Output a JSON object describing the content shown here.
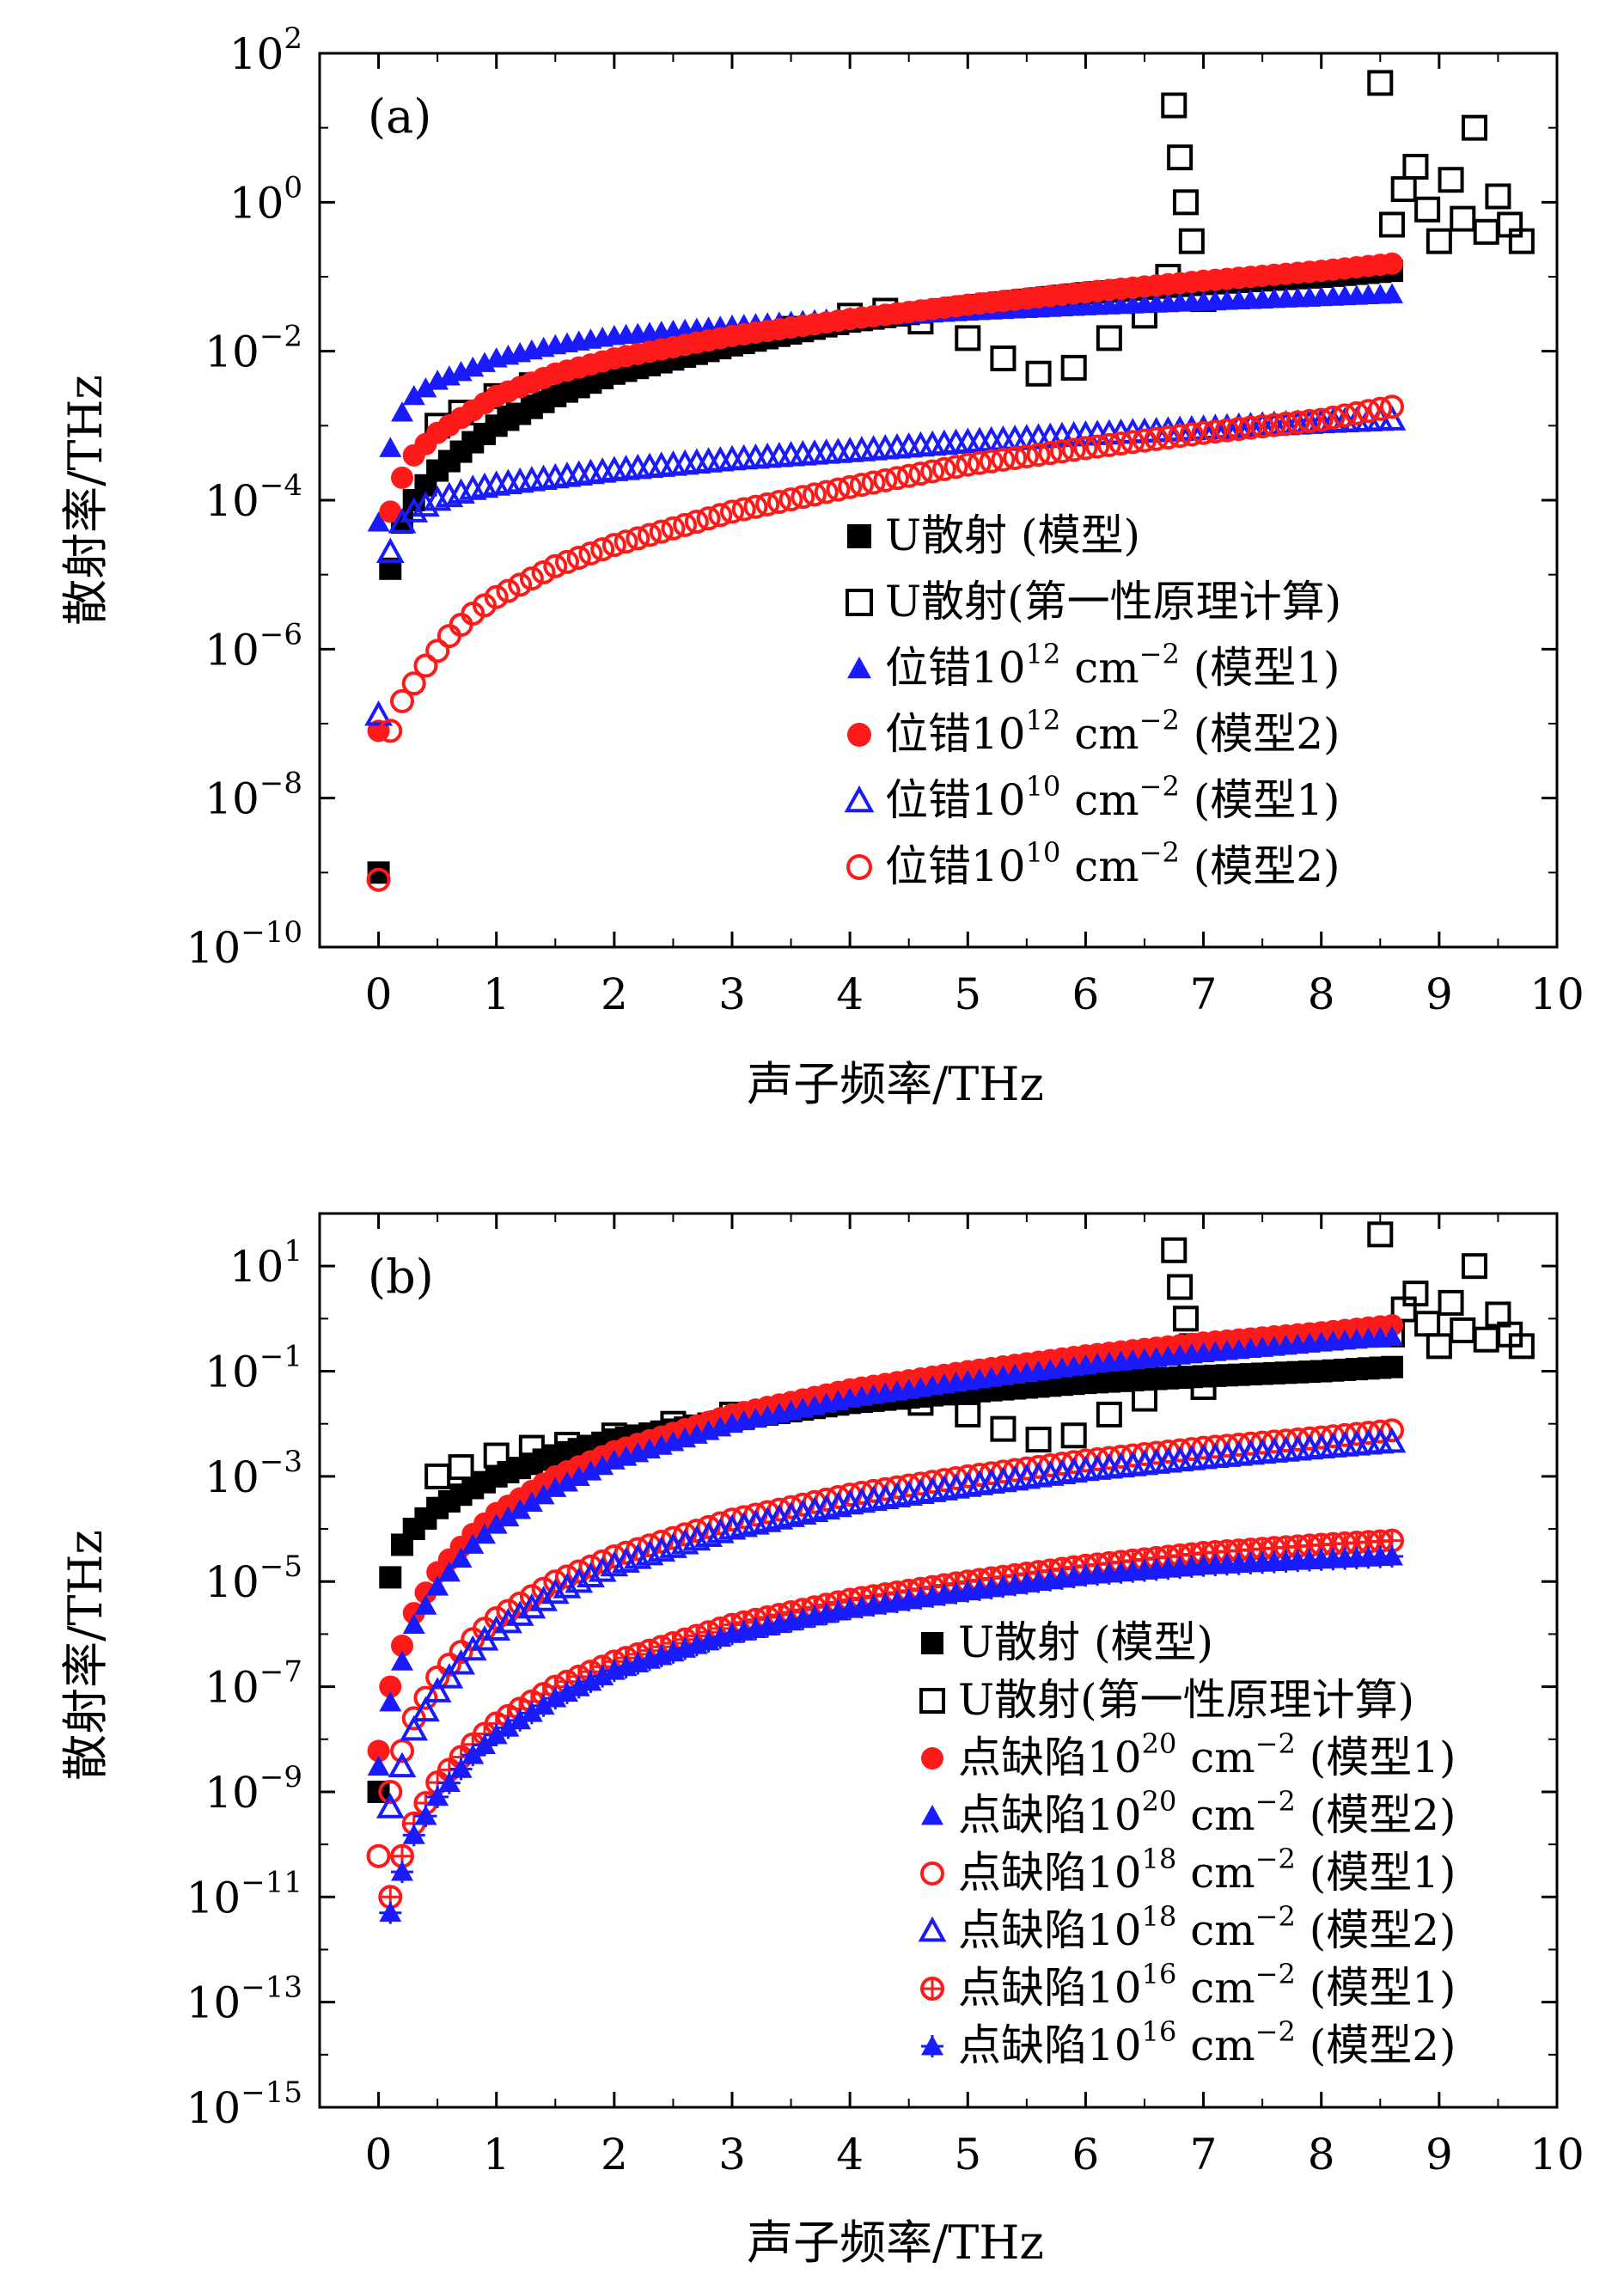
{
  "colors": {
    "black": "#000000",
    "blue": "#1a1aff",
    "red": "#ff1a1a"
  },
  "chart_data": [
    {
      "type": "scatter",
      "panel_label": "(a)",
      "xlabel": "声子频率/THz",
      "ylabel": "散射率/THz",
      "xlim": [
        -0.5,
        10
      ],
      "xticks": [
        "0",
        "1",
        "2",
        "3",
        "4",
        "5",
        "6",
        "7",
        "8",
        "9",
        "10"
      ],
      "y_log": true,
      "ylim_exp": [
        -10,
        2
      ],
      "yticks": [
        {
          "base": "10",
          "exp": "2"
        },
        {
          "base": "10",
          "exp": "0"
        },
        {
          "base": "10",
          "exp": "−2"
        },
        {
          "base": "10",
          "exp": "−4"
        },
        {
          "base": "10",
          "exp": "−6"
        },
        {
          "base": "10",
          "exp": "−8"
        },
        {
          "base": "10",
          "exp": "−10"
        }
      ],
      "ytick_exp": [
        2,
        0,
        -2,
        -4,
        -6,
        -8,
        -10
      ],
      "legend_position": "center-right",
      "series": [
        {
          "name": "U散射 (模型)",
          "label_main": "U散射 (模型)",
          "label_sup": "",
          "label_tail": "",
          "marker": "filled-square",
          "color": "#000000",
          "x": [
            0.0,
            0.1,
            0.2,
            0.3,
            0.5,
            0.8,
            1.0,
            1.5,
            2.0,
            3.0,
            4.0,
            5.0,
            6.0,
            7.0,
            8.0,
            8.6
          ],
          "y": [
            1e-09,
            1.2e-05,
            5e-05,
            0.0001,
            0.00025,
            0.0006,
            0.001,
            0.0025,
            0.005,
            0.012,
            0.025,
            0.04,
            0.06,
            0.08,
            0.1,
            0.12
          ]
        },
        {
          "name": "U散射(第一性原理计算)",
          "label_main": "U散射(第一性原理计算)",
          "label_sup": "",
          "label_tail": "",
          "marker": "open-square",
          "color": "#000000",
          "x": [
            0.5,
            0.7,
            1.0,
            1.3,
            1.6,
            2.0,
            2.5,
            3.0,
            3.5,
            4.0,
            4.3,
            4.6,
            5.0,
            5.3,
            5.6,
            5.9,
            6.2,
            6.5,
            6.7,
            6.75,
            6.8,
            6.85,
            6.9,
            7.0,
            8.5,
            8.6,
            8.7,
            8.8,
            8.9,
            9.0,
            9.1,
            9.2,
            9.3,
            9.4,
            9.5,
            9.6,
            9.7
          ],
          "y": [
            0.001,
            0.0015,
            0.0025,
            0.0035,
            0.004,
            0.006,
            0.01,
            0.015,
            0.02,
            0.03,
            0.035,
            0.025,
            0.015,
            0.008,
            0.005,
            0.006,
            0.015,
            0.03,
            0.1,
            20,
            4,
            1,
            0.3,
            0.05,
            40,
            0.5,
            1.5,
            3,
            0.8,
            0.3,
            2,
            0.6,
            10,
            0.4,
            1.2,
            0.5,
            0.3
          ]
        },
        {
          "name": "位错10^12 cm^−2 (模型1)",
          "label_main": "位错10",
          "label_sup": "12",
          "label_tail": " cm",
          "label_sup2": "−2",
          "label_end": " (模型1)",
          "marker": "filled-triangle",
          "color": "#1a1aff",
          "x": [
            0.0,
            0.1,
            0.2,
            0.3,
            0.5,
            0.8,
            1.0,
            1.5,
            2.0,
            3.0,
            4.0,
            5.0,
            6.0,
            7.0,
            8.0,
            8.6
          ],
          "y": [
            5e-05,
            0.0005,
            0.0015,
            0.0025,
            0.004,
            0.006,
            0.008,
            0.012,
            0.016,
            0.022,
            0.028,
            0.034,
            0.04,
            0.046,
            0.053,
            0.058
          ]
        },
        {
          "name": "位错10^12 cm^−2 (模型2)",
          "label_main": "位错10",
          "label_sup": "12",
          "label_tail": " cm",
          "label_sup2": "−2",
          "label_end": " (模型2)",
          "marker": "filled-circle",
          "color": "#ff1a1a",
          "x": [
            0.0,
            0.1,
            0.2,
            0.3,
            0.5,
            0.8,
            1.0,
            1.5,
            2.0,
            3.0,
            4.0,
            5.0,
            6.0,
            7.0,
            8.0,
            8.6
          ],
          "y": [
            8e-08,
            7e-05,
            0.0002,
            0.0004,
            0.0008,
            0.0016,
            0.0025,
            0.005,
            0.008,
            0.016,
            0.027,
            0.042,
            0.062,
            0.088,
            0.12,
            0.15
          ]
        },
        {
          "name": "位错10^10 cm^−2 (模型1)",
          "label_main": "位错10",
          "label_sup": "10",
          "label_tail": " cm",
          "label_sup2": "−2",
          "label_end": " (模型1)",
          "marker": "open-triangle",
          "color": "#1a1aff",
          "x": [
            0.0,
            0.1,
            0.2,
            0.3,
            0.5,
            0.8,
            1.0,
            1.5,
            2.0,
            3.0,
            4.0,
            5.0,
            6.0,
            7.0,
            8.0,
            8.6
          ],
          "y": [
            1.3e-07,
            2e-05,
            5e-05,
            7e-05,
            0.0001,
            0.00014,
            0.00016,
            0.0002,
            0.00025,
            0.00035,
            0.00045,
            0.0006,
            0.00075,
            0.0009,
            0.0011,
            0.0012
          ]
        },
        {
          "name": "位错10^10 cm^−2 (模型2)",
          "label_main": "位错10",
          "label_sup": "10",
          "label_tail": " cm",
          "label_sup2": "−2",
          "label_end": " (模型2)",
          "marker": "open-circle",
          "color": "#ff1a1a",
          "x": [
            0.0,
            0.1,
            0.2,
            0.4,
            0.6,
            0.8,
            1.0,
            1.5,
            2.0,
            3.0,
            4.0,
            5.0,
            6.0,
            7.0,
            8.0,
            8.6
          ],
          "y": [
            8e-10,
            8e-08,
            2e-07,
            6e-07,
            1.5e-06,
            3e-06,
            5e-06,
            1.3e-05,
            2.5e-05,
            7e-05,
            0.00015,
            0.0003,
            0.0005,
            0.0008,
            0.0012,
            0.0018
          ]
        }
      ]
    },
    {
      "type": "scatter",
      "panel_label": "(b)",
      "xlabel": "声子频率/THz",
      "ylabel": "散射率/THz",
      "xlim": [
        -0.5,
        10
      ],
      "xticks": [
        "0",
        "1",
        "2",
        "3",
        "4",
        "5",
        "6",
        "7",
        "8",
        "9",
        "10"
      ],
      "y_log": true,
      "ylim_exp": [
        -15,
        2
      ],
      "yticks": [
        {
          "base": "10",
          "exp": "1"
        },
        {
          "base": "10",
          "exp": "−1"
        },
        {
          "base": "10",
          "exp": "−3"
        },
        {
          "base": "10",
          "exp": "−5"
        },
        {
          "base": "10",
          "exp": "−7"
        },
        {
          "base": "10",
          "exp": "−9"
        },
        {
          "base": "10",
          "exp": "−11"
        },
        {
          "base": "10",
          "exp": "−13"
        },
        {
          "base": "10",
          "exp": "−15"
        }
      ],
      "ytick_exp": [
        1,
        -1,
        -3,
        -5,
        -7,
        -9,
        -11,
        -13,
        -15
      ],
      "legend_position": "bottom-right",
      "series": [
        {
          "name": "U散射 (模型)",
          "label_main": "U散射 (模型)",
          "label_sup": "",
          "label_tail": "",
          "marker": "filled-square",
          "color": "#000000",
          "x": [
            0.0,
            0.1,
            0.2,
            0.3,
            0.5,
            0.8,
            1.0,
            1.5,
            2.0,
            3.0,
            4.0,
            5.0,
            6.0,
            7.0,
            8.0,
            8.6
          ],
          "y": [
            1e-09,
            1.2e-05,
            5e-05,
            0.0001,
            0.00025,
            0.0006,
            0.001,
            0.0025,
            0.005,
            0.012,
            0.025,
            0.04,
            0.06,
            0.08,
            0.1,
            0.12
          ]
        },
        {
          "name": "U散射(第一性原理计算)",
          "label_main": "U散射(第一性原理计算)",
          "label_sup": "",
          "label_tail": "",
          "marker": "open-square",
          "color": "#000000",
          "x": [
            0.5,
            0.7,
            1.0,
            1.3,
            1.6,
            2.0,
            2.5,
            3.0,
            3.5,
            4.0,
            4.3,
            4.6,
            5.0,
            5.3,
            5.6,
            5.9,
            6.2,
            6.5,
            6.7,
            6.75,
            6.8,
            6.85,
            6.9,
            7.0,
            8.5,
            8.6,
            8.7,
            8.8,
            8.9,
            9.0,
            9.1,
            9.2,
            9.3,
            9.4,
            9.5,
            9.6,
            9.7
          ],
          "y": [
            0.001,
            0.0015,
            0.0025,
            0.0035,
            0.004,
            0.006,
            0.01,
            0.015,
            0.02,
            0.03,
            0.035,
            0.025,
            0.015,
            0.008,
            0.005,
            0.006,
            0.015,
            0.03,
            0.1,
            20,
            4,
            1,
            0.3,
            0.05,
            40,
            0.5,
            1.5,
            3,
            0.8,
            0.3,
            2,
            0.6,
            10,
            0.4,
            1.2,
            0.5,
            0.3
          ]
        },
        {
          "name": "点缺陷10^20 cm^−2 (模型1)",
          "label_main": "点缺陷10",
          "label_sup": "20",
          "label_tail": " cm",
          "label_sup2": "−2",
          "label_end": " (模型1)",
          "marker": "filled-circle",
          "color": "#ff1a1a",
          "x": [
            0.0,
            0.1,
            0.2,
            0.3,
            0.5,
            0.8,
            1.0,
            1.5,
            2.0,
            3.0,
            4.0,
            5.0,
            6.0,
            7.0,
            8.0,
            8.6
          ],
          "y": [
            6e-09,
            1e-07,
            6e-07,
            2.5e-06,
            1.5e-05,
            8e-05,
            0.0002,
            0.001,
            0.003,
            0.015,
            0.045,
            0.1,
            0.2,
            0.35,
            0.55,
            0.75
          ]
        },
        {
          "name": "点缺陷10^20 cm^−2 (模型2)",
          "label_main": "点缺陷10",
          "label_sup": "20",
          "label_tail": " cm",
          "label_sup2": "−2",
          "label_end": " (模型2)",
          "marker": "filled-triangle",
          "color": "#1a1aff",
          "x": [
            0.0,
            0.1,
            0.2,
            0.3,
            0.5,
            0.8,
            1.0,
            1.5,
            2.0,
            3.0,
            4.0,
            5.0,
            6.0,
            7.0,
            8.0,
            8.6
          ],
          "y": [
            3e-09,
            5e-08,
            3e-07,
            1.5e-06,
            8e-06,
            5e-05,
            0.00012,
            0.0006,
            0.002,
            0.01,
            0.03,
            0.065,
            0.13,
            0.22,
            0.35,
            0.45
          ]
        },
        {
          "name": "点缺陷10^18 cm^−2 (模型1)",
          "label_main": "点缺陷10",
          "label_sup": "18",
          "label_tail": " cm",
          "label_sup2": "−2",
          "label_end": " (模型1)",
          "marker": "open-circle",
          "color": "#ff1a1a",
          "x": [
            0.0,
            0.1,
            0.2,
            0.3,
            0.5,
            0.8,
            1.0,
            1.5,
            2.0,
            3.0,
            4.0,
            5.0,
            6.0,
            7.0,
            8.0,
            8.6
          ],
          "y": [
            6e-11,
            1e-09,
            6e-09,
            2.5e-08,
            1.5e-07,
            8e-07,
            2e-06,
            1e-05,
            3e-05,
            0.00015,
            0.00045,
            0.001,
            0.002,
            0.0035,
            0.0055,
            0.0075
          ]
        },
        {
          "name": "点缺陷10^18 cm^−2 (模型2)",
          "label_main": "点缺陷10",
          "label_sup": "18",
          "label_tail": " cm",
          "label_sup2": "−2",
          "label_end": " (模型2)",
          "marker": "open-triangle",
          "color": "#1a1aff",
          "x": [
            0.1,
            0.2,
            0.3,
            0.5,
            0.8,
            1.0,
            1.5,
            2.0,
            3.0,
            4.0,
            5.0,
            6.0,
            7.0,
            8.0,
            8.6
          ],
          "y": [
            5e-10,
            3e-09,
            1.5e-08,
            8e-08,
            5e-07,
            1.2e-06,
            6e-06,
            2e-05,
            0.0001,
            0.0003,
            0.00065,
            0.0013,
            0.0022,
            0.0035,
            0.0045
          ]
        },
        {
          "name": "点缺陷10^16 cm^−2 (模型1)",
          "label_main": "点缺陷10",
          "label_sup": "16",
          "label_tail": " cm",
          "label_sup2": "−2",
          "label_end": " (模型1)",
          "marker": "circle-plus",
          "color": "#ff1a1a",
          "x": [
            0.1,
            0.2,
            0.3,
            0.5,
            0.8,
            1.0,
            1.5,
            2.0,
            3.0,
            4.0,
            5.0,
            6.0,
            7.0,
            8.0,
            8.6
          ],
          "y": [
            1e-11,
            6e-11,
            2.5e-10,
            1.5e-09,
            8e-09,
            2e-08,
            1e-07,
            3e-07,
            1.5e-06,
            4.5e-06,
            1e-05,
            2e-05,
            3.5e-05,
            5e-05,
            6e-05
          ]
        },
        {
          "name": "点缺陷10^16 cm^−2 (模型2)",
          "label_main": "点缺陷10",
          "label_sup": "16",
          "label_tail": " cm",
          "label_sup2": "−2",
          "label_end": " (模型2)",
          "marker": "triangle-plus",
          "color": "#1a1aff",
          "x": [
            0.1,
            0.2,
            0.3,
            0.5,
            0.8,
            1.0,
            1.5,
            2.0,
            3.0,
            4.0,
            5.0,
            6.0,
            7.0,
            8.0,
            8.6
          ],
          "y": [
            5e-12,
            3e-11,
            1.5e-10,
            8e-10,
            5e-09,
            1.2e-08,
            6e-08,
            2e-07,
            1e-06,
            3e-06,
            6.5e-06,
            1.3e-05,
            2e-05,
            2.6e-05,
            3e-05
          ]
        }
      ]
    }
  ]
}
